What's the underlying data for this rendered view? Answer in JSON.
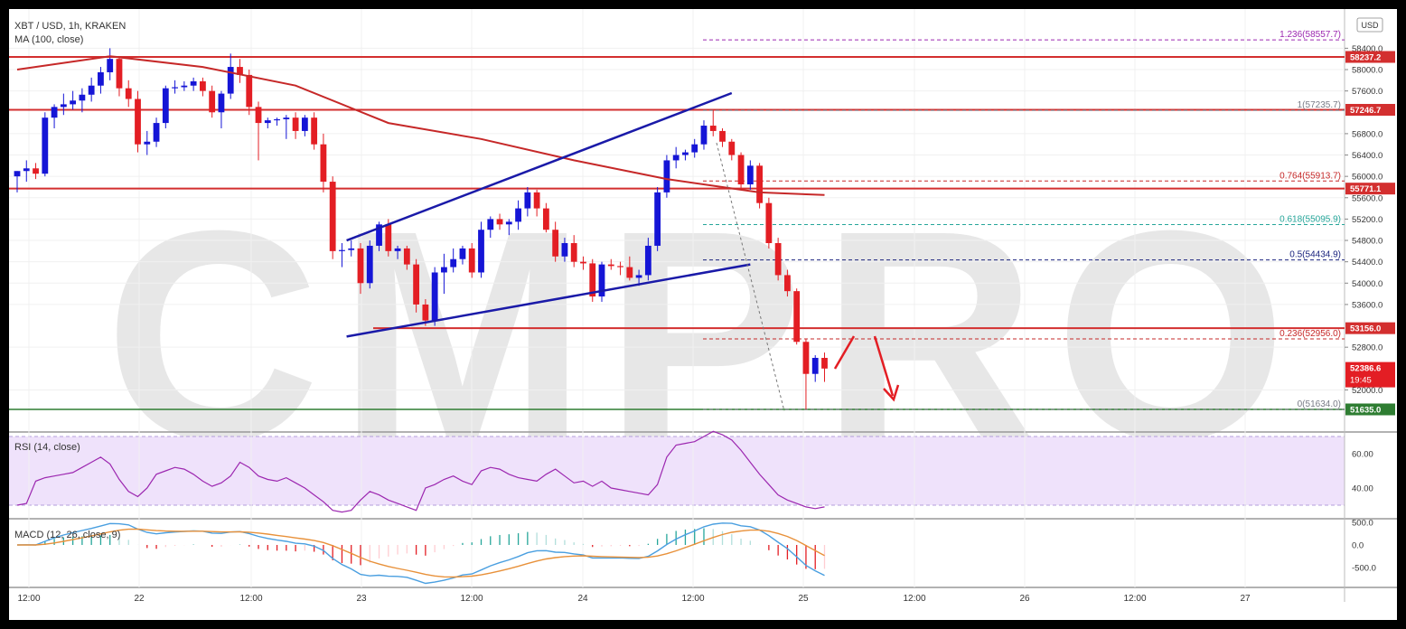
{
  "header": {
    "symbol": "XBT / USD, 1h, KRAKEN",
    "ma_label": "MA (100, close)",
    "currency": "USD"
  },
  "watermark": "CMPRO",
  "price_axis": {
    "ticks": [
      58400,
      58000,
      57600,
      56800,
      56400,
      56000,
      55600,
      55200,
      54800,
      54400,
      54000,
      53600,
      52800,
      52000
    ],
    "min": 51400,
    "max": 58800
  },
  "time_axis": {
    "labels": [
      "12:00",
      "22",
      "12:00",
      "23",
      "12:00",
      "24",
      "12:00",
      "25",
      "12:00",
      "26",
      "12:00",
      "27"
    ]
  },
  "price_levels": [
    {
      "label": "58237.2",
      "value": 58237.2
    },
    {
      "label": "57246.7",
      "value": 57246.7
    },
    {
      "label": "55771.1",
      "value": 55771.1
    },
    {
      "label": "53156.0",
      "value": 53156.0
    }
  ],
  "support_level": {
    "label": "51635.0",
    "value": 51635.0,
    "color": "#2e7d32"
  },
  "current_price": {
    "label": "52386.6",
    "timer": "19:45",
    "value": 52386.6
  },
  "fib_levels": [
    {
      "ratio": "1.236",
      "text": "(58557.7)",
      "value": 58557.7,
      "color": "#9c27b0"
    },
    {
      "ratio": "1",
      "text": "(57235.7)",
      "value": 57235.7,
      "color": "#787b86"
    },
    {
      "ratio": "0.764",
      "text": "(55913.7)",
      "value": 55913.7,
      "color": "#c62828"
    },
    {
      "ratio": "0.618",
      "text": "(55095.9)",
      "value": 55095.9,
      "color": "#26a69a"
    },
    {
      "ratio": "0.5",
      "text": "(54434.9)",
      "value": 54434.9,
      "color": "#1a237e"
    },
    {
      "ratio": "0.236",
      "text": "(52956.0)",
      "value": 52956.0,
      "color": "#c62828"
    },
    {
      "ratio": "0",
      "text": "(51634.0)",
      "value": 51634.0,
      "color": "#787b86"
    }
  ],
  "rsi": {
    "label": "RSI (14, close)",
    "ticks": [
      "60.00",
      "40.00"
    ]
  },
  "macd": {
    "label": "MACD (12, 26, close, 9)",
    "ticks": [
      "500.0",
      "0.0",
      "-500.0"
    ]
  },
  "colors": {
    "up": "#1515d6",
    "down": "#e31e24",
    "ma": "#c62828",
    "level": "#d32f2f",
    "trend": "#1a1aa8"
  },
  "chart_data": {
    "type": "candlestick",
    "candles": [
      {
        "o": 56000,
        "h": 56100,
        "l": 55700,
        "c": 56100
      },
      {
        "o": 56100,
        "h": 56300,
        "l": 55900,
        "c": 56150
      },
      {
        "o": 56150,
        "h": 56250,
        "l": 55950,
        "c": 56050
      },
      {
        "o": 56050,
        "h": 57200,
        "l": 56000,
        "c": 57100
      },
      {
        "o": 57100,
        "h": 57350,
        "l": 56900,
        "c": 57300
      },
      {
        "o": 57300,
        "h": 57550,
        "l": 57150,
        "c": 57350
      },
      {
        "o": 57350,
        "h": 57600,
        "l": 57250,
        "c": 57420
      },
      {
        "o": 57420,
        "h": 57650,
        "l": 57200,
        "c": 57530
      },
      {
        "o": 57530,
        "h": 57850,
        "l": 57400,
        "c": 57700
      },
      {
        "o": 57700,
        "h": 58050,
        "l": 57550,
        "c": 57950
      },
      {
        "o": 57950,
        "h": 58400,
        "l": 57800,
        "c": 58200
      },
      {
        "o": 58200,
        "h": 58250,
        "l": 57500,
        "c": 57650
      },
      {
        "o": 57650,
        "h": 57800,
        "l": 57300,
        "c": 57450
      },
      {
        "o": 57450,
        "h": 57600,
        "l": 56450,
        "c": 56600
      },
      {
        "o": 56600,
        "h": 56850,
        "l": 56400,
        "c": 56650
      },
      {
        "o": 56650,
        "h": 57100,
        "l": 56550,
        "c": 57000
      },
      {
        "o": 57000,
        "h": 57700,
        "l": 56900,
        "c": 57650
      },
      {
        "o": 57650,
        "h": 57800,
        "l": 57550,
        "c": 57670
      },
      {
        "o": 57670,
        "h": 57780,
        "l": 57600,
        "c": 57700
      },
      {
        "o": 57700,
        "h": 57850,
        "l": 57600,
        "c": 57780
      },
      {
        "o": 57780,
        "h": 57850,
        "l": 57500,
        "c": 57600
      },
      {
        "o": 57600,
        "h": 57700,
        "l": 57100,
        "c": 57200
      },
      {
        "o": 57200,
        "h": 57600,
        "l": 56900,
        "c": 57550
      },
      {
        "o": 57550,
        "h": 58300,
        "l": 57450,
        "c": 58050
      },
      {
        "o": 58050,
        "h": 58200,
        "l": 57750,
        "c": 57900
      },
      {
        "o": 57900,
        "h": 58000,
        "l": 57150,
        "c": 57300
      },
      {
        "o": 57300,
        "h": 57400,
        "l": 56300,
        "c": 57000
      },
      {
        "o": 57000,
        "h": 57100,
        "l": 56900,
        "c": 57050
      },
      {
        "o": 57050,
        "h": 57100,
        "l": 56950,
        "c": 57070
      },
      {
        "o": 57070,
        "h": 57150,
        "l": 56700,
        "c": 57100
      },
      {
        "o": 57100,
        "h": 57200,
        "l": 56700,
        "c": 56850
      },
      {
        "o": 56850,
        "h": 57150,
        "l": 56750,
        "c": 57100
      },
      {
        "o": 57100,
        "h": 57200,
        "l": 56500,
        "c": 56600
      },
      {
        "o": 56600,
        "h": 56800,
        "l": 55700,
        "c": 55900
      },
      {
        "o": 55900,
        "h": 56000,
        "l": 54450,
        "c": 54600
      },
      {
        "o": 54600,
        "h": 54750,
        "l": 54300,
        "c": 54620
      },
      {
        "o": 54620,
        "h": 54800,
        "l": 54500,
        "c": 54650
      },
      {
        "o": 54650,
        "h": 54750,
        "l": 53800,
        "c": 54000
      },
      {
        "o": 54000,
        "h": 54800,
        "l": 53900,
        "c": 54700
      },
      {
        "o": 54700,
        "h": 55150,
        "l": 54600,
        "c": 55100
      },
      {
        "o": 55100,
        "h": 55200,
        "l": 54500,
        "c": 54600
      },
      {
        "o": 54600,
        "h": 54700,
        "l": 54450,
        "c": 54650
      },
      {
        "o": 54650,
        "h": 54700,
        "l": 54250,
        "c": 54350
      },
      {
        "o": 54350,
        "h": 54450,
        "l": 53450,
        "c": 53600
      },
      {
        "o": 53600,
        "h": 53700,
        "l": 53200,
        "c": 53300
      },
      {
        "o": 53300,
        "h": 54300,
        "l": 53200,
        "c": 54200
      },
      {
        "o": 54200,
        "h": 54550,
        "l": 53800,
        "c": 54300
      },
      {
        "o": 54300,
        "h": 54650,
        "l": 54200,
        "c": 54450
      },
      {
        "o": 54450,
        "h": 54700,
        "l": 54350,
        "c": 54650
      },
      {
        "o": 54650,
        "h": 54750,
        "l": 54100,
        "c": 54200
      },
      {
        "o": 54200,
        "h": 55150,
        "l": 54100,
        "c": 55000
      },
      {
        "o": 55000,
        "h": 55250,
        "l": 54850,
        "c": 55200
      },
      {
        "o": 55200,
        "h": 55300,
        "l": 55000,
        "c": 55100
      },
      {
        "o": 55100,
        "h": 55200,
        "l": 54900,
        "c": 55150
      },
      {
        "o": 55150,
        "h": 55550,
        "l": 55000,
        "c": 55400
      },
      {
        "o": 55400,
        "h": 55800,
        "l": 55250,
        "c": 55700
      },
      {
        "o": 55700,
        "h": 55750,
        "l": 55250,
        "c": 55400
      },
      {
        "o": 55400,
        "h": 55500,
        "l": 54950,
        "c": 55000
      },
      {
        "o": 55000,
        "h": 55150,
        "l": 54400,
        "c": 54500
      },
      {
        "o": 54500,
        "h": 54850,
        "l": 54400,
        "c": 54750
      },
      {
        "o": 54750,
        "h": 54900,
        "l": 54300,
        "c": 54400
      },
      {
        "o": 54400,
        "h": 54500,
        "l": 54250,
        "c": 54370
      },
      {
        "o": 54370,
        "h": 54450,
        "l": 53650,
        "c": 53750
      },
      {
        "o": 53750,
        "h": 54400,
        "l": 53650,
        "c": 54350
      },
      {
        "o": 54350,
        "h": 54450,
        "l": 54250,
        "c": 54320
      },
      {
        "o": 54320,
        "h": 54400,
        "l": 54150,
        "c": 54300
      },
      {
        "o": 54300,
        "h": 54500,
        "l": 54050,
        "c": 54100
      },
      {
        "o": 54100,
        "h": 54250,
        "l": 53950,
        "c": 54150
      },
      {
        "o": 54150,
        "h": 54850,
        "l": 54050,
        "c": 54700
      },
      {
        "o": 54700,
        "h": 55800,
        "l": 54600,
        "c": 55700
      },
      {
        "o": 55700,
        "h": 56400,
        "l": 55600,
        "c": 56300
      },
      {
        "o": 56300,
        "h": 56550,
        "l": 56150,
        "c": 56400
      },
      {
        "o": 56400,
        "h": 56500,
        "l": 56300,
        "c": 56450
      },
      {
        "o": 56450,
        "h": 56700,
        "l": 56350,
        "c": 56600
      },
      {
        "o": 56600,
        "h": 57050,
        "l": 56500,
        "c": 56950
      },
      {
        "o": 56950,
        "h": 57230,
        "l": 56750,
        "c": 56850
      },
      {
        "o": 56850,
        "h": 56900,
        "l": 56550,
        "c": 56650
      },
      {
        "o": 56650,
        "h": 56700,
        "l": 56300,
        "c": 56400
      },
      {
        "o": 56400,
        "h": 56450,
        "l": 55750,
        "c": 55850
      },
      {
        "o": 55850,
        "h": 56300,
        "l": 55750,
        "c": 56200
      },
      {
        "o": 56200,
        "h": 56250,
        "l": 55400,
        "c": 55500
      },
      {
        "o": 55500,
        "h": 55600,
        "l": 54650,
        "c": 54750
      },
      {
        "o": 54750,
        "h": 54850,
        "l": 54050,
        "c": 54150
      },
      {
        "o": 54150,
        "h": 54250,
        "l": 53750,
        "c": 53850
      },
      {
        "o": 53850,
        "h": 53900,
        "l": 52850,
        "c": 52900
      },
      {
        "o": 52900,
        "h": 52950,
        "l": 51634,
        "c": 52300
      },
      {
        "o": 52300,
        "h": 52650,
        "l": 52150,
        "c": 52600
      },
      {
        "o": 52600,
        "h": 52700,
        "l": 52150,
        "c": 52400
      }
    ],
    "ma100": [
      [
        0,
        58000
      ],
      [
        10,
        58250
      ],
      [
        20,
        58050
      ],
      [
        30,
        57700
      ],
      [
        40,
        57000
      ],
      [
        50,
        56700
      ],
      [
        60,
        56300
      ],
      [
        70,
        55950
      ],
      [
        80,
        55700
      ],
      [
        87,
        55650
      ]
    ],
    "trendlines": [
      {
        "name": "upper-channel",
        "points": [
          [
            35.5,
            54800
          ],
          [
            77,
            57560
          ]
        ]
      },
      {
        "name": "lower-channel",
        "points": [
          [
            35.5,
            53000
          ],
          [
            79,
            54350
          ]
        ]
      }
    ],
    "rsi_values": [
      30,
      31,
      44,
      46,
      47,
      48,
      49,
      52,
      55,
      58,
      54,
      45,
      38,
      35,
      40,
      48,
      50,
      52,
      51,
      48,
      44,
      41,
      43,
      47,
      55,
      52,
      47,
      45,
      44,
      46,
      43,
      40,
      36,
      32,
      27,
      26,
      27,
      33,
      38,
      36,
      33,
      31,
      29,
      27,
      40,
      42,
      45,
      47,
      44,
      42,
      50,
      52,
      51,
      48,
      46,
      45,
      44,
      48,
      51,
      47,
      43,
      44,
      41,
      44,
      40,
      39,
      38,
      37,
      36,
      42,
      58,
      65,
      66,
      67,
      70,
      73,
      71,
      68,
      62,
      55,
      48,
      42,
      36,
      33,
      31,
      29,
      28,
      29
    ]
  }
}
